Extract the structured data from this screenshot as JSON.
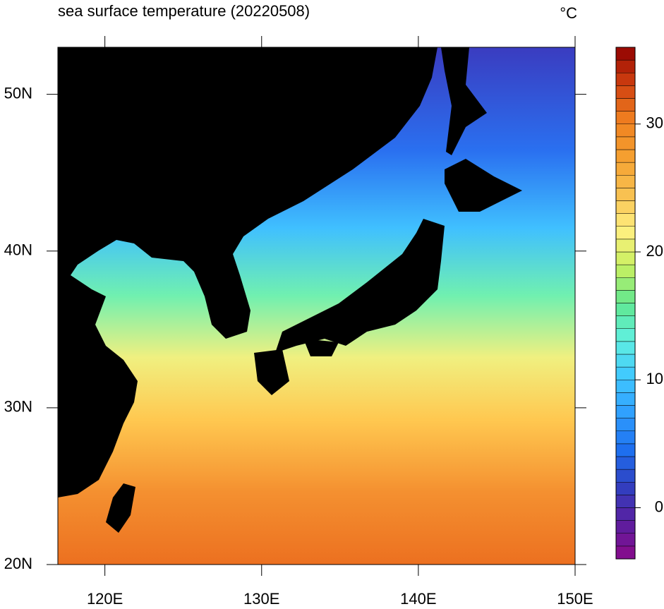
{
  "chart_data": {
    "type": "map",
    "title": "sea surface temperature (20220508)",
    "unit_label": "°C",
    "xlim": [
      117,
      150
    ],
    "ylim": [
      20,
      53
    ],
    "xticks": [
      {
        "value": 120,
        "label": "120E"
      },
      {
        "value": 130,
        "label": "130E"
      },
      {
        "value": 140,
        "label": "140E"
      },
      {
        "value": 150,
        "label": "150E"
      }
    ],
    "yticks": [
      {
        "value": 20,
        "label": "20N"
      },
      {
        "value": 30,
        "label": "30N"
      },
      {
        "value": 40,
        "label": "40N"
      },
      {
        "value": 50,
        "label": "50N"
      }
    ],
    "colorbar": {
      "lim": [
        -4,
        36
      ],
      "ticks": [
        0,
        10,
        20,
        30
      ],
      "colors": [
        "#8a0a8a",
        "#5a1ea0",
        "#3040c0",
        "#1e70f0",
        "#30a0ff",
        "#40c8ff",
        "#60f0e0",
        "#60e890",
        "#c8f060",
        "#fff080",
        "#f8c050",
        "#f5a030",
        "#f08020",
        "#d04010",
        "#900000"
      ]
    }
  }
}
